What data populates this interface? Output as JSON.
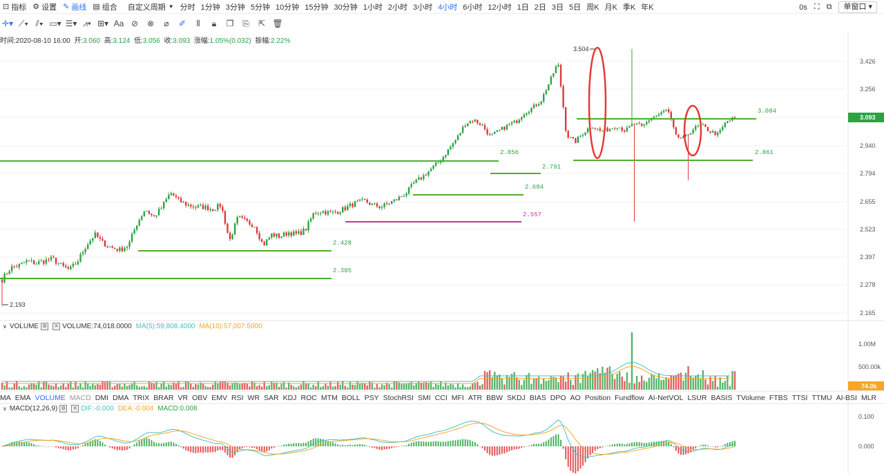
{
  "toolbar": {
    "indicators_label": "指标",
    "settings_label": "设置",
    "draw_label": "画线",
    "combo_label": "组合",
    "custom_period_label": "自定义周期",
    "periods": [
      "分时",
      "1分钟",
      "3分钟",
      "5分钟",
      "10分钟",
      "15分钟",
      "30分钟",
      "1小时",
      "2小时",
      "3小时",
      "4小时",
      "6小时",
      "12小时",
      "1日",
      "2日",
      "3日",
      "5日",
      "周K",
      "月K",
      "季K",
      "年K"
    ],
    "active_period": "4小时",
    "countdown": "0s",
    "window_mode": "单窗口"
  },
  "info": {
    "time_label": "时间:",
    "time": "2020-08-10 16:00",
    "open_label": "开:",
    "open": "3.060",
    "high_label": "高:",
    "high": "3.124",
    "low_label": "低:",
    "low": "3.056",
    "close_label": "收:",
    "close": "3.093",
    "change_label": "涨幅:",
    "change": "1.05%(0.032)",
    "amp_label": "振幅:",
    "amp": "2.22%"
  },
  "volume_panel": {
    "title": "VOLUME",
    "value": "VOLUME:74,018.0000",
    "ma5": "MA(5):59,808.4000",
    "ma10": "MA(10):57,007.5000",
    "axis_labels": [
      "1.00M",
      "500.00k"
    ],
    "current": "74.0k"
  },
  "macd_panel": {
    "title": "MACD(12,26,9)",
    "dif": "DIF:-0.000",
    "dea": "DEA:-0.004",
    "macd": "MACD:0.008",
    "axis_labels": [
      "0.100",
      "0.000"
    ]
  },
  "indicator_tabs": [
    "MA",
    "EMA",
    "VOLUME",
    "MACD",
    "DMI",
    "DMA",
    "TRIX",
    "BRAR",
    "VR",
    "OBV",
    "EMV",
    "RSI",
    "WR",
    "SAR",
    "KDJ",
    "ROC",
    "MTM",
    "BOLL",
    "PSY",
    "StochRSI",
    "SMI",
    "CCI",
    "MFI",
    "ATR",
    "BBW",
    "SKDJ",
    "BIAS",
    "DPO",
    "AO",
    "Position",
    "Fundflow",
    "AI-NetVOL",
    "LSUR",
    "BASIS",
    "TVolume",
    "FTBS",
    "TTSI",
    "TTMU",
    "AI-BSI",
    "MLR"
  ],
  "active_indicator_tabs": [
    "VOLUME"
  ],
  "dim_indicator_tabs": [
    "MACD"
  ],
  "colors": {
    "up": "#2ca243",
    "down": "#e0363b",
    "accent": "#2c6ff5",
    "ma5": "#44c0c2",
    "ma10": "#f5a623",
    "level": "#4caf2a",
    "pink": "#c2369b",
    "marker": "#e53935"
  },
  "chart_data": {
    "type": "candlestick",
    "title": "",
    "y_ticks": [
      "3.426",
      "3.256",
      "3.093",
      "2.940",
      "2.794",
      "2.655",
      "2.523",
      "2.397",
      "2.278",
      "2.165"
    ],
    "ylim": [
      2.16,
      3.56
    ],
    "last_price": "3.093",
    "high_marker": "3.504",
    "low_marker": "2.193",
    "levels": [
      {
        "value": "2.305",
        "color": "green"
      },
      {
        "value": "2.428",
        "color": "green"
      },
      {
        "value": "2.557",
        "color": "pink"
      },
      {
        "value": "2.684",
        "color": "green"
      },
      {
        "value": "2.791",
        "color": "green"
      },
      {
        "value": "2.856",
        "color": "green"
      },
      {
        "value": "2.861",
        "color": "green"
      },
      {
        "value": "3.084",
        "color": "green"
      }
    ],
    "annotations": [
      {
        "shape": "ellipse",
        "around": "3.504 spike",
        "color": "red"
      },
      {
        "shape": "ellipse",
        "around": "recent dip near 2.95",
        "color": "red"
      }
    ],
    "close_path": [
      2.3,
      2.35,
      2.36,
      2.38,
      2.37,
      2.38,
      2.39,
      2.36,
      2.34,
      2.38,
      2.45,
      2.5,
      2.46,
      2.44,
      2.43,
      2.45,
      2.55,
      2.62,
      2.58,
      2.63,
      2.7,
      2.66,
      2.64,
      2.63,
      2.63,
      2.62,
      2.64,
      2.47,
      2.58,
      2.56,
      2.54,
      2.45,
      2.5,
      2.49,
      2.51,
      2.5,
      2.52,
      2.6,
      2.61,
      2.6,
      2.61,
      2.63,
      2.65,
      2.66,
      2.64,
      2.63,
      2.65,
      2.67,
      2.7,
      2.75,
      2.78,
      2.82,
      2.86,
      2.92,
      2.98,
      3.06,
      3.08,
      3.05,
      2.99,
      3.02,
      3.05,
      3.07,
      3.12,
      3.15,
      3.19,
      3.3,
      3.42,
      3.0,
      2.96,
      3.01,
      3.05,
      3.02,
      3.03,
      3.05,
      3.02,
      3.06,
      3.04,
      3.09,
      3.11,
      3.14,
      2.99,
      2.98,
      3.03,
      3.05,
      3.02,
      3.0,
      3.07,
      3.09
    ],
    "volume_note": "spike ~1.25M at the 3.504 high"
  }
}
